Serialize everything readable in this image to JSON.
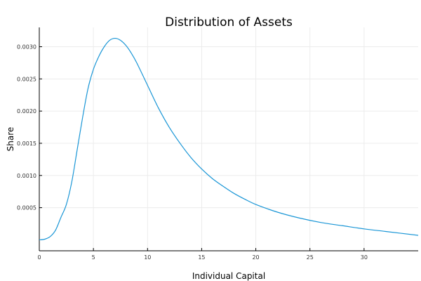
{
  "chart_data": {
    "type": "line",
    "title": "Distribution of Assets",
    "xlabel": "Individual Capital",
    "ylabel": "Share",
    "xlim": [
      0,
      35
    ],
    "ylim": [
      -0.00017,
      0.0033
    ],
    "x_ticks": [
      0,
      5,
      10,
      15,
      20,
      25,
      30
    ],
    "x_tick_labels": [
      "0",
      "5",
      "10",
      "15",
      "20",
      "25",
      "30"
    ],
    "y_ticks": [
      0.0005,
      0.001,
      0.0015,
      0.002,
      0.0025,
      0.003
    ],
    "y_tick_labels": [
      "0.0005",
      "0.0010",
      "0.0015",
      "0.0020",
      "0.0025",
      "0.0030"
    ],
    "grid": true,
    "legend": "none",
    "color": "#1a96d6",
    "series": [
      {
        "x": [
          0,
          0.5,
          1,
          1.5,
          2,
          2.5,
          3,
          3.5,
          4,
          4.5,
          5,
          5.5,
          6,
          6.5,
          7,
          7.5,
          8,
          8.5,
          9,
          10,
          11,
          12,
          13,
          14,
          15,
          16,
          17,
          18,
          19,
          20,
          22,
          24,
          26,
          28,
          30,
          32,
          35
        ],
        "values": [
          0.0,
          1e-05,
          5e-05,
          0.00015,
          0.00035,
          0.00055,
          0.0009,
          0.0014,
          0.0019,
          0.00235,
          0.00265,
          0.00285,
          0.003,
          0.0031,
          0.00313,
          0.0031,
          0.00302,
          0.0029,
          0.00275,
          0.0024,
          0.00205,
          0.00175,
          0.0015,
          0.00128,
          0.0011,
          0.00095,
          0.00083,
          0.00072,
          0.00063,
          0.00055,
          0.00043,
          0.00034,
          0.00027,
          0.00022,
          0.00017,
          0.00013,
          7e-05
        ]
      }
    ]
  }
}
